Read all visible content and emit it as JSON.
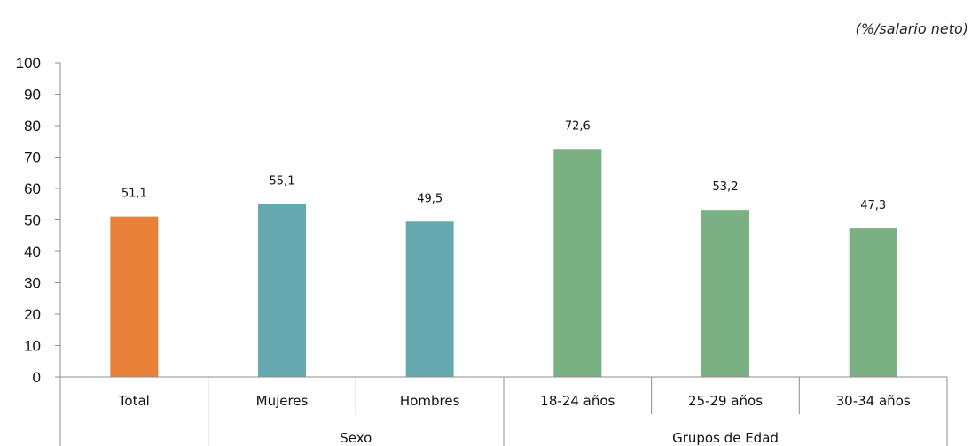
{
  "unit_note": "(%/salario neto)",
  "colors": {
    "total": "#E8803A",
    "sexo": "#65A8AF",
    "edad": "#7BAF84",
    "axis": "#8C8C8C"
  },
  "chart_data": {
    "type": "bar",
    "categories": [
      "Total",
      "Mujeres",
      "Hombres",
      "18-24 años",
      "25-29 años",
      "30-34 años"
    ],
    "values": [
      51.1,
      55.1,
      49.5,
      72.6,
      53.2,
      47.3
    ],
    "value_labels": [
      "51,1",
      "55,1",
      "49,5",
      "72,6",
      "53,2",
      "47,3"
    ],
    "category_groups": [
      {
        "name": "",
        "categories": [
          "Total"
        ],
        "color_key": "total"
      },
      {
        "name": "Sexo",
        "categories": [
          "Mujeres",
          "Hombres"
        ],
        "color_key": "sexo"
      },
      {
        "name": "Grupos de Edad",
        "categories": [
          "18-24 años",
          "25-29 años",
          "30-34 años"
        ],
        "color_key": "edad"
      }
    ],
    "ylim": [
      0,
      100
    ],
    "yticks": [
      0,
      10,
      20,
      30,
      40,
      50,
      60,
      70,
      80,
      90,
      100
    ],
    "grid": false,
    "legend": "none"
  }
}
